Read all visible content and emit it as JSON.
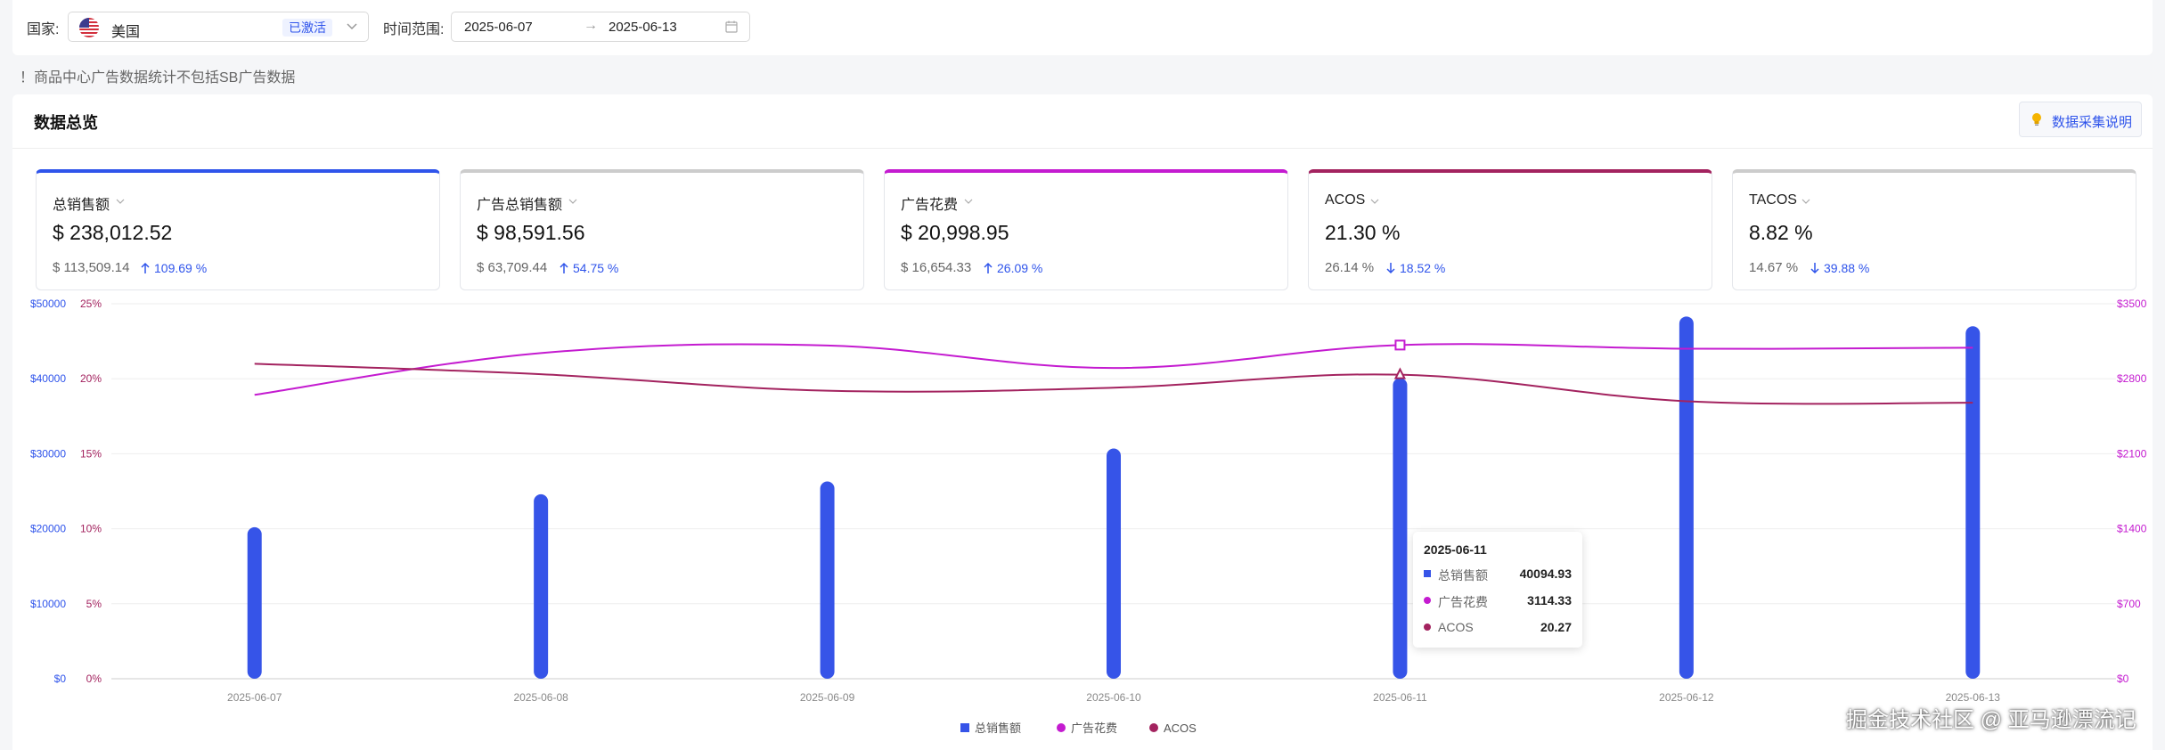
{
  "filters": {
    "country_label": "国家:",
    "country_value": "美国",
    "country_flag": "us-flag-icon",
    "country_badge": "已激活",
    "range_label": "时间范围:",
    "date_start": "2025-06-07",
    "date_separator": "→",
    "date_end": "2025-06-13"
  },
  "notice": "！商品中心广告数据统计不包括SB广告数据",
  "overview": {
    "title": "数据总览",
    "help_button": "数据采集说明"
  },
  "cards": [
    {
      "title": "总销售额",
      "value": "$ 238,012.52",
      "prev": "$ 113,509.14",
      "change": "109.69 %",
      "direction": "up",
      "accent": "#2f54eb"
    },
    {
      "title": "广告总销售额",
      "value": "$ 98,591.56",
      "prev": "$ 63,709.44",
      "change": "54.75 %",
      "direction": "up",
      "accent": "#cccccc"
    },
    {
      "title": "广告花费",
      "value": "$ 20,998.95",
      "prev": "$ 16,654.33",
      "change": "26.09 %",
      "direction": "up",
      "accent": "#c41bd0"
    },
    {
      "title": "ACOS",
      "value": "21.30 %",
      "prev": "26.14 %",
      "change": "18.52 %",
      "direction": "down",
      "accent": "#a3235f"
    },
    {
      "title": "TACOS",
      "value": "8.82 %",
      "prev": "14.67 %",
      "change": "39.88 %",
      "direction": "down",
      "accent": "#cccccc"
    }
  ],
  "chart_data": {
    "type": "bar",
    "categories": [
      "2025-06-07",
      "2025-06-08",
      "2025-06-09",
      "2025-06-10",
      "2025-06-11",
      "2025-06-12",
      "2025-06-13"
    ],
    "series": [
      {
        "name": "总销售额",
        "type": "bar",
        "axis": "left",
        "color": "#3654e8",
        "values": [
          20200,
          24600,
          26300,
          30700,
          40094.93,
          48300,
          47000
        ]
      },
      {
        "name": "广告花费",
        "type": "line",
        "axis": "right",
        "color": "#c41bd0",
        "values": [
          2650,
          3040,
          3110,
          2900,
          3114.33,
          3080,
          3090
        ]
      },
      {
        "name": "ACOS",
        "type": "line",
        "axis": "mid",
        "color": "#a3235f",
        "values": [
          21,
          20.3,
          19.2,
          19.4,
          20.27,
          18.5,
          18.4
        ]
      }
    ],
    "y_left": {
      "ticks": [
        "$0",
        "$10000",
        "$20000",
        "$30000",
        "$40000",
        "$50000"
      ],
      "range": [
        0,
        50000
      ],
      "color": "#2f54eb"
    },
    "y_mid": {
      "ticks": [
        "0%",
        "5%",
        "10%",
        "15%",
        "20%",
        "25%"
      ],
      "range": [
        0,
        25
      ],
      "color": "#a3235f"
    },
    "y_right": {
      "ticks": [
        "$0",
        "$700",
        "$1400",
        "$2100",
        "$2800",
        "$3500"
      ],
      "range": [
        0,
        3500
      ],
      "color": "#c41bd0"
    },
    "legend": [
      "总销售额",
      "广告花费",
      "ACOS"
    ],
    "legend_position": "bottom-center",
    "grid": true
  },
  "tooltip": {
    "date": "2025-06-11",
    "rows": [
      {
        "name": "总销售额",
        "value": "40094.93",
        "color": "#3654e8",
        "marker": "square"
      },
      {
        "name": "广告花费",
        "value": "3114.33",
        "color": "#c41bd0",
        "marker": "circle"
      },
      {
        "name": "ACOS",
        "value": "20.27",
        "color": "#a3235f",
        "marker": "circle"
      }
    ]
  },
  "watermark": "掘金技术社区 @ 亚马逊漂流记"
}
